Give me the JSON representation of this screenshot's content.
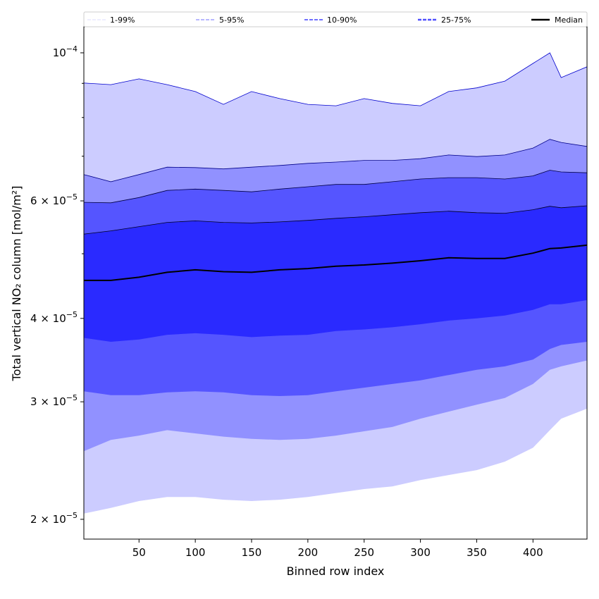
{
  "chart_data": {
    "type": "area",
    "title": "",
    "xlabel": "Binned row index",
    "ylabel": "Total vertical NO₂ column [mol/m²]",
    "yscale": "log",
    "y_unit_multiplier": 1e-05,
    "xlim": [
      1,
      448
    ],
    "ylim": [
      1.868e-05,
      0.0001094
    ],
    "x_ticks": [
      50,
      100,
      150,
      200,
      250,
      300,
      350,
      400
    ],
    "y_ticks": [
      {
        "value": 2e-05,
        "mantissa": "2",
        "exp": "−5"
      },
      {
        "value": 3e-05,
        "mantissa": "3",
        "exp": "−5"
      },
      {
        "value": 4e-05,
        "mantissa": "4",
        "exp": "−5"
      },
      {
        "value": 6e-05,
        "mantissa": "6",
        "exp": "−5"
      },
      {
        "value": 0.0001,
        "mantissa": "",
        "exp": "−4"
      }
    ],
    "y_minor_ticks": [
      5e-05,
      7e-05,
      8e-05,
      9e-05
    ],
    "grid": false,
    "legend_placement": "top, above plot",
    "x": [
      1,
      25,
      50,
      75,
      100,
      125,
      150,
      175,
      200,
      225,
      250,
      275,
      300,
      325,
      350,
      375,
      400,
      415,
      425,
      449
    ],
    "bands": [
      {
        "name": "1-99%",
        "color": "#ccccff",
        "edge": "#0000cc",
        "upper": [
          9.01,
          8.96,
          9.14,
          8.96,
          8.75,
          8.37,
          8.75,
          8.54,
          8.37,
          8.33,
          8.54,
          8.4,
          8.33,
          8.75,
          8.86,
          9.07,
          9.64,
          10.0,
          9.18,
          9.53
        ],
        "lower": [
          2.04,
          2.08,
          2.13,
          2.16,
          2.16,
          2.14,
          2.13,
          2.14,
          2.16,
          2.19,
          2.22,
          2.24,
          2.29,
          2.33,
          2.37,
          2.44,
          2.56,
          2.72,
          2.83,
          2.93
        ]
      },
      {
        "name": "5-95%",
        "color": "#9191ff",
        "edge": "#000088",
        "upper": [
          6.57,
          6.41,
          6.57,
          6.74,
          6.73,
          6.7,
          6.74,
          6.78,
          6.83,
          6.86,
          6.9,
          6.9,
          6.94,
          7.03,
          6.99,
          7.03,
          7.2,
          7.42,
          7.34,
          7.24
        ],
        "lower": [
          2.53,
          2.63,
          2.67,
          2.72,
          2.69,
          2.66,
          2.64,
          2.63,
          2.64,
          2.67,
          2.71,
          2.75,
          2.83,
          2.9,
          2.97,
          3.04,
          3.19,
          3.35,
          3.39,
          3.46
        ]
      },
      {
        "name": "10-90%",
        "color": "#5555ff",
        "edge": "#000044",
        "upper": [
          5.97,
          5.96,
          6.07,
          6.22,
          6.25,
          6.22,
          6.19,
          6.25,
          6.3,
          6.35,
          6.35,
          6.41,
          6.47,
          6.5,
          6.5,
          6.47,
          6.54,
          6.67,
          6.63,
          6.61
        ],
        "lower": [
          3.11,
          3.07,
          3.07,
          3.1,
          3.11,
          3.1,
          3.07,
          3.06,
          3.07,
          3.11,
          3.15,
          3.19,
          3.23,
          3.29,
          3.35,
          3.39,
          3.47,
          3.6,
          3.65,
          3.69
        ]
      },
      {
        "name": "25-75%",
        "color": "#2a2aff",
        "edge": "#000022",
        "upper": [
          5.35,
          5.41,
          5.49,
          5.57,
          5.6,
          5.57,
          5.56,
          5.58,
          5.61,
          5.65,
          5.68,
          5.72,
          5.76,
          5.79,
          5.76,
          5.75,
          5.82,
          5.89,
          5.86,
          5.9
        ],
        "lower": [
          3.74,
          3.69,
          3.72,
          3.78,
          3.8,
          3.78,
          3.75,
          3.77,
          3.78,
          3.83,
          3.85,
          3.88,
          3.92,
          3.97,
          4.0,
          4.04,
          4.12,
          4.2,
          4.2,
          4.26
        ]
      }
    ],
    "median": {
      "name": "Median",
      "color": "#000000",
      "values": [
        4.56,
        4.56,
        4.61,
        4.69,
        4.73,
        4.7,
        4.69,
        4.73,
        4.75,
        4.79,
        4.81,
        4.84,
        4.88,
        4.93,
        4.92,
        4.92,
        5.01,
        5.09,
        5.1,
        5.15
      ]
    },
    "legend": [
      {
        "label": "1-99%",
        "color": "#ddddff"
      },
      {
        "label": "5-95%",
        "color": "#a0a0ff"
      },
      {
        "label": "10-90%",
        "color": "#7070ff"
      },
      {
        "label": "25-75%",
        "color": "#5050ff"
      },
      {
        "label": "Median",
        "color": "#000000"
      }
    ]
  }
}
